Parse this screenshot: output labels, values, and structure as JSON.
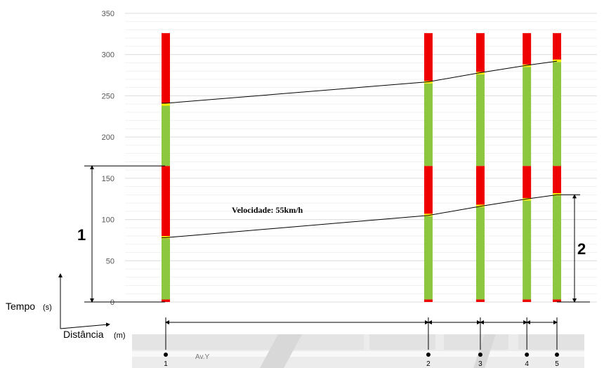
{
  "chart_data": {
    "type": "line",
    "ylim": [
      0,
      350
    ],
    "yticks": [
      0,
      50,
      100,
      150,
      200,
      250,
      300,
      350
    ],
    "grid": true,
    "ylabel": "Tempo",
    "ylabel_unit": "(s)",
    "xlabel": "Distância",
    "xlabel_unit": "(m)",
    "intersections": [
      {
        "label": "1",
        "offset_m": 0
      },
      {
        "label": "2",
        "offset_m": 480
      },
      {
        "label": "3",
        "offset_m": 575
      },
      {
        "label": "4",
        "offset_m": 660
      },
      {
        "label": "5",
        "offset_m": 715
      }
    ],
    "signal_cycles": [
      {
        "intersection": "1",
        "phases": [
          {
            "color": "red",
            "start": 0,
            "end": 3
          },
          {
            "color": "green",
            "start": 3,
            "end": 77
          },
          {
            "color": "yellow",
            "start": 77,
            "end": 80
          },
          {
            "color": "red",
            "start": 80,
            "end": 165
          },
          {
            "color": "green",
            "start": 165,
            "end": 238
          },
          {
            "color": "yellow",
            "start": 238,
            "end": 241
          },
          {
            "color": "red",
            "start": 241,
            "end": 326
          }
        ]
      },
      {
        "intersection": "2",
        "phases": [
          {
            "color": "red",
            "start": 0,
            "end": 3
          },
          {
            "color": "green",
            "start": 3,
            "end": 104
          },
          {
            "color": "yellow",
            "start": 104,
            "end": 107
          },
          {
            "color": "red",
            "start": 107,
            "end": 165
          },
          {
            "color": "green",
            "start": 165,
            "end": 265
          },
          {
            "color": "yellow",
            "start": 265,
            "end": 268
          },
          {
            "color": "red",
            "start": 268,
            "end": 326
          }
        ]
      },
      {
        "intersection": "3",
        "phases": [
          {
            "color": "red",
            "start": 0,
            "end": 3
          },
          {
            "color": "green",
            "start": 3,
            "end": 115
          },
          {
            "color": "yellow",
            "start": 115,
            "end": 118
          },
          {
            "color": "red",
            "start": 118,
            "end": 165
          },
          {
            "color": "green",
            "start": 165,
            "end": 276
          },
          {
            "color": "yellow",
            "start": 276,
            "end": 279
          },
          {
            "color": "red",
            "start": 279,
            "end": 326
          }
        ]
      },
      {
        "intersection": "4",
        "phases": [
          {
            "color": "red",
            "start": 0,
            "end": 3
          },
          {
            "color": "green",
            "start": 3,
            "end": 123
          },
          {
            "color": "yellow",
            "start": 123,
            "end": 126
          },
          {
            "color": "red",
            "start": 126,
            "end": 165
          },
          {
            "color": "green",
            "start": 165,
            "end": 285
          },
          {
            "color": "yellow",
            "start": 285,
            "end": 288
          },
          {
            "color": "red",
            "start": 288,
            "end": 326
          }
        ]
      },
      {
        "intersection": "5",
        "phases": [
          {
            "color": "red",
            "start": 0,
            "end": 3
          },
          {
            "color": "green",
            "start": 3,
            "end": 129
          },
          {
            "color": "yellow",
            "start": 129,
            "end": 132
          },
          {
            "color": "red",
            "start": 132,
            "end": 165
          },
          {
            "color": "green",
            "start": 165,
            "end": 291
          },
          {
            "color": "yellow",
            "start": 291,
            "end": 294
          },
          {
            "color": "red",
            "start": 294,
            "end": 326
          }
        ]
      }
    ],
    "bands": [
      {
        "points": [
          [
            0,
            78
          ],
          [
            480,
            105
          ],
          [
            575,
            116
          ],
          [
            660,
            125
          ],
          [
            715,
            130
          ]
        ]
      },
      {
        "points": [
          [
            0,
            241
          ],
          [
            480,
            267
          ],
          [
            575,
            278
          ],
          [
            660,
            287
          ],
          [
            715,
            292
          ]
        ]
      }
    ],
    "annotations": {
      "speed_label": "Velocidade: 55km/h",
      "dim1_label": "1",
      "dim1_range": [
        0,
        165
      ],
      "dim2_label": "2",
      "dim2_range": [
        0,
        130
      ]
    },
    "street_label": "Av.Y",
    "colors": {
      "red": "#ee0000",
      "green": "#8dc63f",
      "yellow": "#ffee00",
      "grid": "#e8e8e8",
      "band_line": "#000000"
    }
  }
}
